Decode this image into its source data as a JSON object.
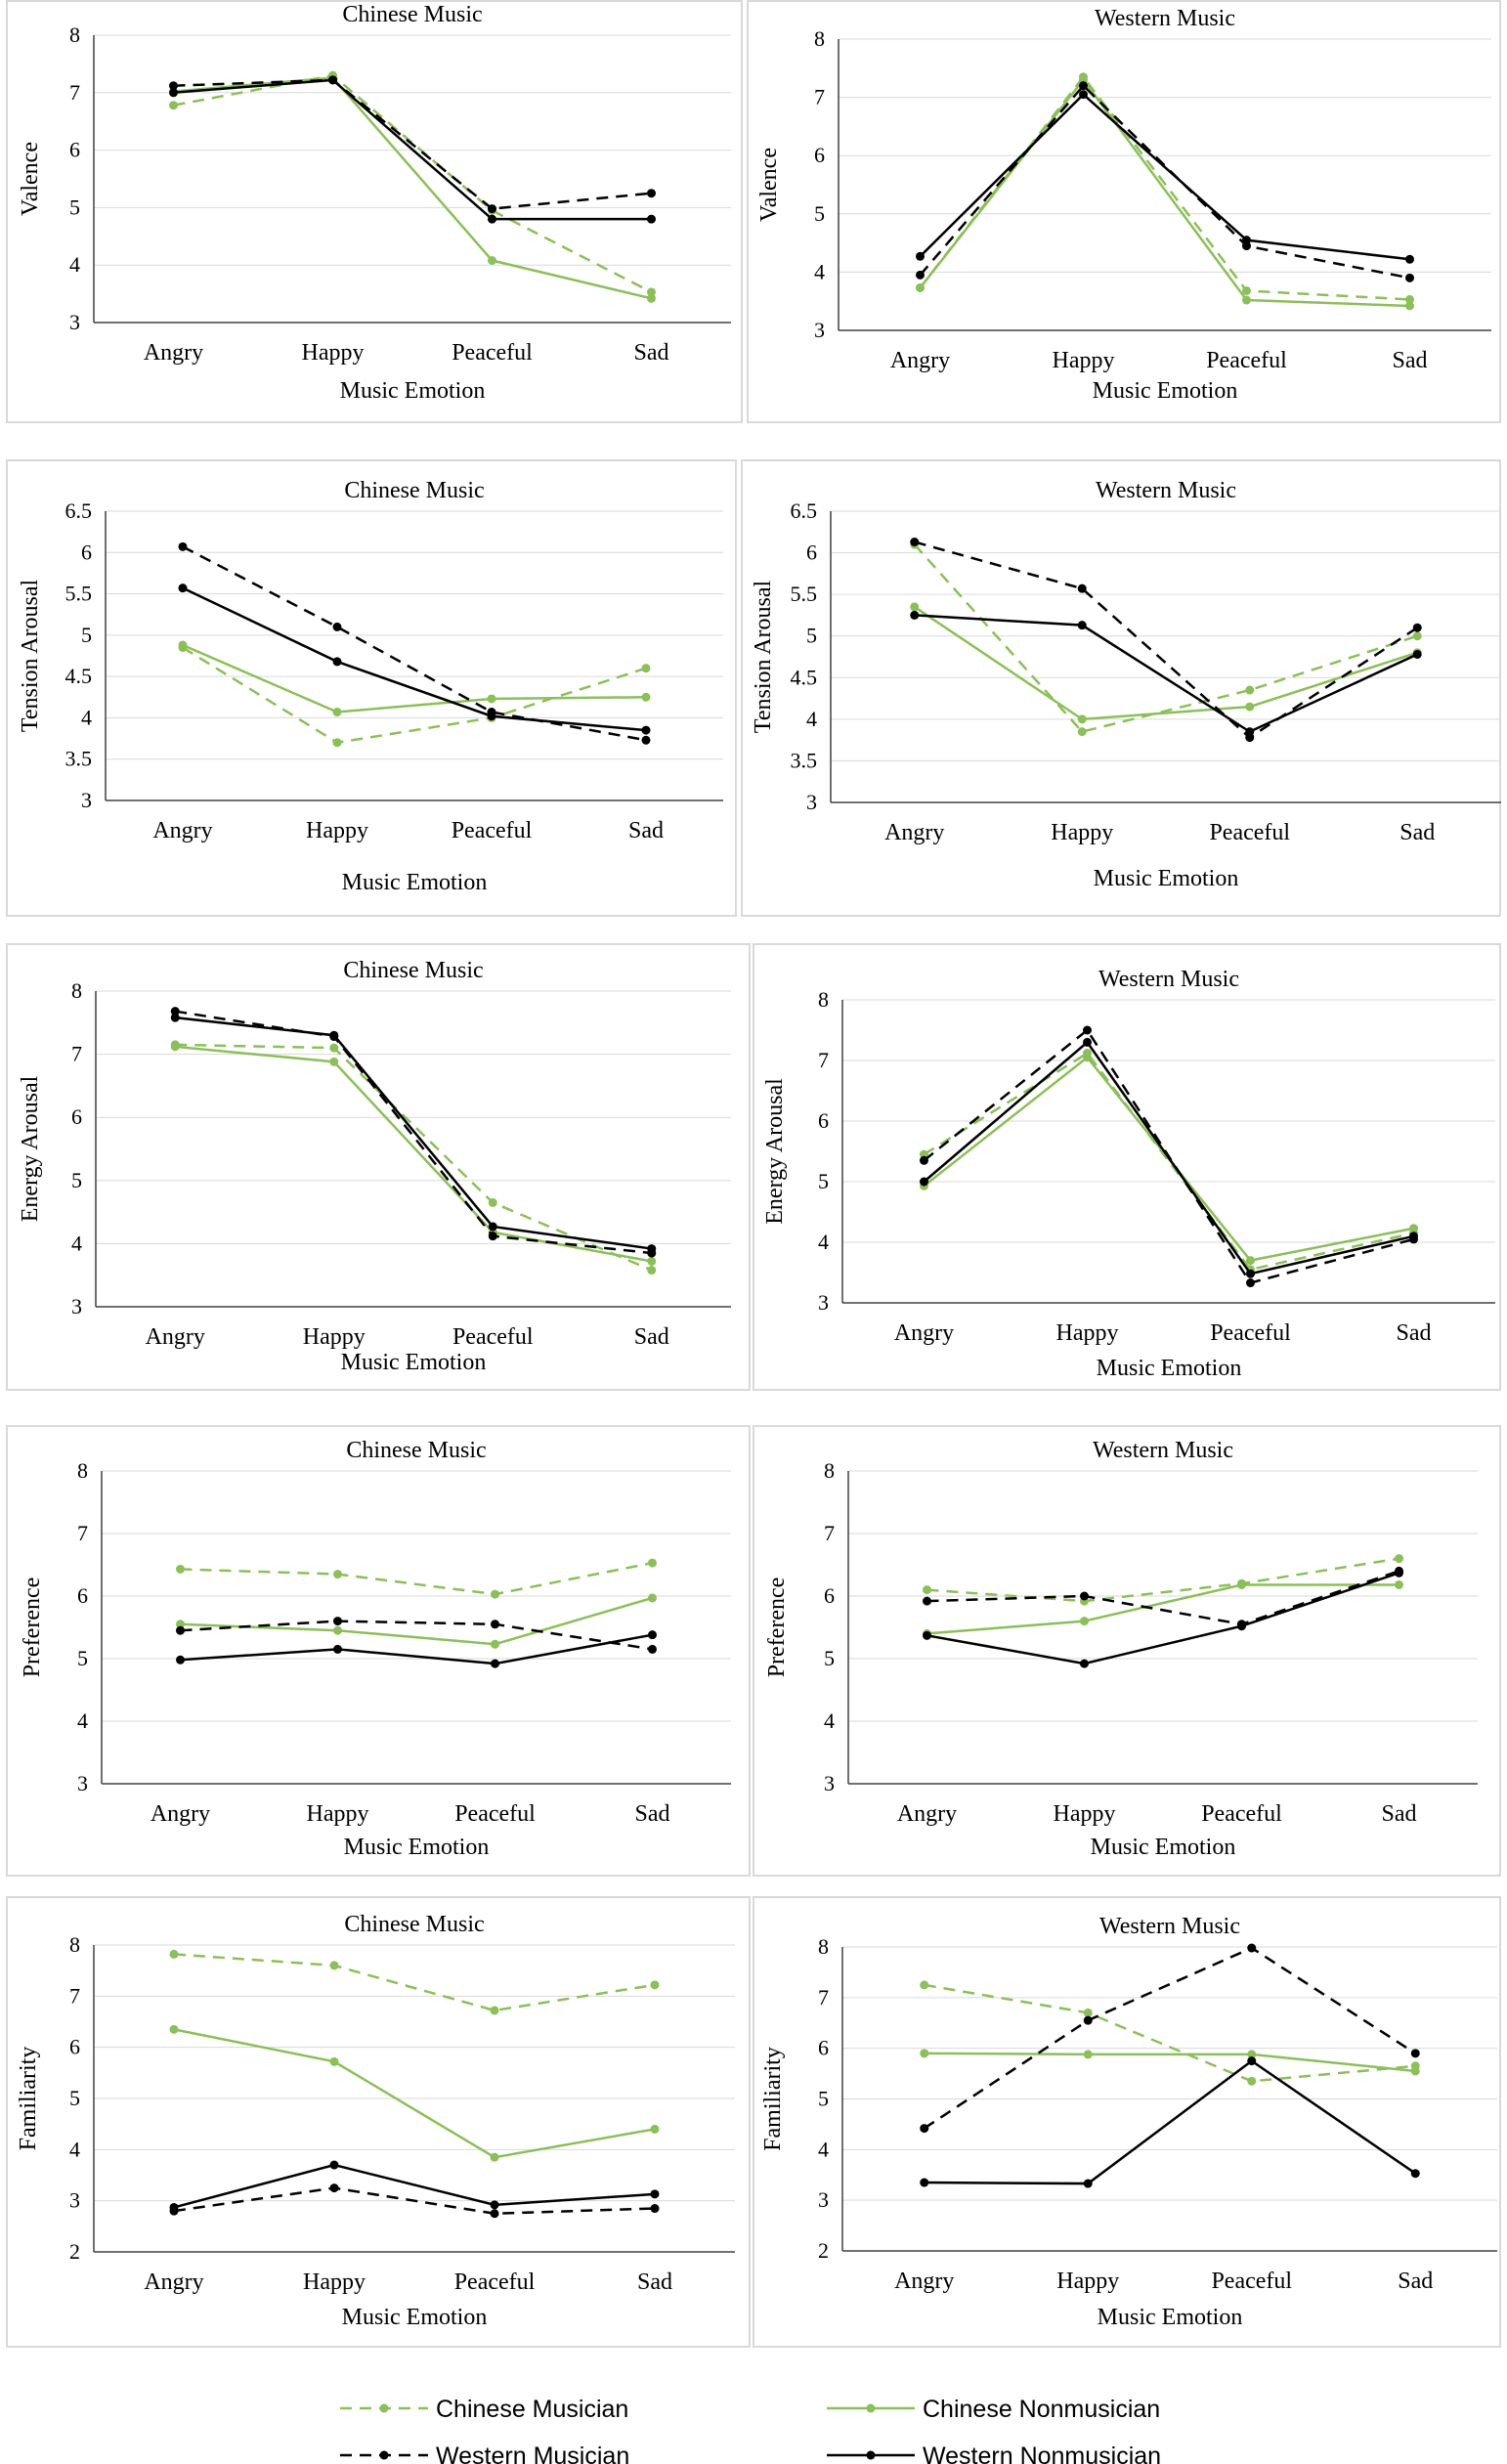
{
  "styles": {
    "chinese_color": "#8cbf5a",
    "western_color": "#000000"
  },
  "legend": [
    {
      "key": "cm",
      "label": "Chinese Musician"
    },
    {
      "key": "cn",
      "label": "Chinese Nonmusician"
    },
    {
      "key": "wm",
      "label": "Western Musician"
    },
    {
      "key": "wn",
      "label": "Western Nonmusician"
    }
  ],
  "chart_data": [
    {
      "type": "line",
      "title": "Chinese Music",
      "xlabel": "Music  Emotion",
      "ylabel": "Valence",
      "categories": [
        "Angry",
        "Happy",
        "Peaceful",
        "Sad"
      ],
      "ylim": [
        3,
        8
      ],
      "yticks": [
        3,
        4,
        5,
        6,
        7,
        8
      ],
      "series": [
        {
          "key": "cm",
          "name": "Chinese Musician",
          "values": [
            6.78,
            7.3,
            4.95,
            3.53
          ]
        },
        {
          "key": "cn",
          "name": "Chinese Nonmusician",
          "values": [
            7.02,
            7.26,
            4.08,
            3.42
          ]
        },
        {
          "key": "wm",
          "name": "Western Musician",
          "values": [
            7.12,
            7.22,
            4.98,
            5.25
          ]
        },
        {
          "key": "wn",
          "name": "Western Nonmusician",
          "values": [
            7.0,
            7.22,
            4.8,
            4.8
          ]
        }
      ]
    },
    {
      "type": "line",
      "title": "Western Music",
      "xlabel": "Music  Emotion",
      "ylabel": "Valence",
      "categories": [
        "Angry",
        "Happy",
        "Peaceful",
        "Sad"
      ],
      "ylim": [
        3,
        8
      ],
      "yticks": [
        3,
        4,
        5,
        6,
        7,
        8
      ],
      "series": [
        {
          "key": "cm",
          "name": "Chinese Musician",
          "values": [
            3.73,
            7.35,
            3.68,
            3.53
          ]
        },
        {
          "key": "cn",
          "name": "Chinese Nonmusician",
          "values": [
            3.73,
            7.3,
            3.52,
            3.42
          ]
        },
        {
          "key": "wm",
          "name": "Western Musician",
          "values": [
            3.95,
            7.2,
            4.45,
            3.9
          ]
        },
        {
          "key": "wn",
          "name": "Western Nonmusician",
          "values": [
            4.27,
            7.05,
            4.55,
            4.22
          ]
        }
      ]
    },
    {
      "type": "line",
      "title": "Chinese  Music",
      "xlabel": "Music Emotion",
      "ylabel": "Tension Arousal",
      "categories": [
        "Angry",
        "Happy",
        "Peaceful",
        "Sad"
      ],
      "ylim": [
        3,
        6.5
      ],
      "yticks": [
        3,
        3.5,
        4,
        4.5,
        5,
        5.5,
        6,
        6.5
      ],
      "series": [
        {
          "key": "cm",
          "name": "Chinese Musician",
          "values": [
            4.85,
            3.7,
            4.0,
            4.6
          ]
        },
        {
          "key": "cn",
          "name": "Chinese Nonmusician",
          "values": [
            4.88,
            4.07,
            4.23,
            4.25
          ]
        },
        {
          "key": "wm",
          "name": "Western Musician",
          "values": [
            6.07,
            5.1,
            4.07,
            3.73
          ]
        },
        {
          "key": "wn",
          "name": "Western Nonmusician",
          "values": [
            5.57,
            4.68,
            4.02,
            3.85
          ]
        }
      ]
    },
    {
      "type": "line",
      "title": "Western Music",
      "xlabel": "Music Emotion",
      "ylabel": "Tension Arousal",
      "categories": [
        "Angry",
        "Happy",
        "Peaceful",
        "Sad"
      ],
      "ylim": [
        3,
        6.5
      ],
      "yticks": [
        3,
        3.5,
        4,
        4.5,
        5,
        5.5,
        6,
        6.5
      ],
      "series": [
        {
          "key": "cm",
          "name": "Chinese Musician",
          "values": [
            6.1,
            3.85,
            4.35,
            5.0
          ]
        },
        {
          "key": "cn",
          "name": "Chinese Nonmusician",
          "values": [
            5.35,
            4.0,
            4.15,
            4.8
          ]
        },
        {
          "key": "wm",
          "name": "Western Musician",
          "values": [
            6.13,
            5.57,
            3.78,
            5.1
          ]
        },
        {
          "key": "wn",
          "name": "Western Nonmusician",
          "values": [
            5.25,
            5.13,
            3.85,
            4.78
          ]
        }
      ]
    },
    {
      "type": "line",
      "title": "Chinese Music",
      "xlabel": "Music Emotion",
      "ylabel": "Energy Arousal",
      "categories": [
        "Angry",
        "Happy",
        "Peaceful",
        "Sad"
      ],
      "ylim": [
        3,
        8
      ],
      "yticks": [
        3,
        4,
        5,
        6,
        7,
        8
      ],
      "series": [
        {
          "key": "cm",
          "name": "Chinese Musician",
          "values": [
            7.15,
            7.1,
            4.65,
            3.58
          ]
        },
        {
          "key": "cn",
          "name": "Chinese Nonmusician",
          "values": [
            7.12,
            6.88,
            4.18,
            3.72
          ]
        },
        {
          "key": "wm",
          "name": "Western Musician",
          "values": [
            7.68,
            7.28,
            4.12,
            3.85
          ]
        },
        {
          "key": "wn",
          "name": "Western Nonmusician",
          "values": [
            7.58,
            7.3,
            4.27,
            3.92
          ]
        }
      ]
    },
    {
      "type": "line",
      "title": "Western Music",
      "xlabel": "Music Emotion",
      "ylabel": "Energy Arousal",
      "categories": [
        "Angry",
        "Happy",
        "Peaceful",
        "Sad"
      ],
      "ylim": [
        3,
        8
      ],
      "yticks": [
        3,
        4,
        5,
        6,
        7,
        8
      ],
      "series": [
        {
          "key": "cm",
          "name": "Chinese Musician",
          "values": [
            5.45,
            7.12,
            3.55,
            4.15
          ]
        },
        {
          "key": "cn",
          "name": "Chinese Nonmusician",
          "values": [
            4.93,
            7.05,
            3.7,
            4.23
          ]
        },
        {
          "key": "wm",
          "name": "Western Musician",
          "values": [
            5.35,
            7.5,
            3.33,
            4.05
          ]
        },
        {
          "key": "wn",
          "name": "Western Nonmusician",
          "values": [
            5.0,
            7.3,
            3.48,
            4.1
          ]
        }
      ]
    },
    {
      "type": "line",
      "title": "Chinese Music",
      "xlabel": "Music Emotion",
      "ylabel": "Preference",
      "categories": [
        "Angry",
        "Happy",
        "Peaceful",
        "Sad"
      ],
      "ylim": [
        3,
        8
      ],
      "yticks": [
        3,
        4,
        5,
        6,
        7,
        8
      ],
      "series": [
        {
          "key": "cm",
          "name": "Chinese Musician",
          "values": [
            6.43,
            6.35,
            6.03,
            6.53
          ]
        },
        {
          "key": "cn",
          "name": "Chinese Nonmusician",
          "values": [
            5.55,
            5.45,
            5.23,
            5.97
          ]
        },
        {
          "key": "wm",
          "name": "Western Musician",
          "values": [
            5.45,
            5.6,
            5.55,
            5.15
          ]
        },
        {
          "key": "wn",
          "name": "Western Nonmusician",
          "values": [
            4.98,
            5.15,
            4.92,
            5.38
          ]
        }
      ]
    },
    {
      "type": "line",
      "title": "Western Music",
      "xlabel": "Music Emotion",
      "ylabel": "Preference",
      "categories": [
        "Angry",
        "Happy",
        "Peaceful",
        "Sad"
      ],
      "ylim": [
        3,
        8
      ],
      "yticks": [
        3,
        4,
        5,
        6,
        7,
        8
      ],
      "series": [
        {
          "key": "cm",
          "name": "Chinese Musician",
          "values": [
            6.1,
            5.92,
            6.2,
            6.6
          ]
        },
        {
          "key": "cn",
          "name": "Chinese Nonmusician",
          "values": [
            5.4,
            5.6,
            6.18,
            6.18
          ]
        },
        {
          "key": "wm",
          "name": "Western Musician",
          "values": [
            5.92,
            6.0,
            5.55,
            6.4
          ]
        },
        {
          "key": "wn",
          "name": "Western Nonmusician",
          "values": [
            5.37,
            4.92,
            5.52,
            6.37
          ]
        }
      ]
    },
    {
      "type": "line",
      "title": "Chinese Music",
      "xlabel": "Music Emotion",
      "ylabel": "Familiarity",
      "categories": [
        "Angry",
        "Happy",
        "Peaceful",
        "Sad"
      ],
      "ylim": [
        2,
        8
      ],
      "yticks": [
        2,
        3,
        4,
        5,
        6,
        7,
        8
      ],
      "series": [
        {
          "key": "cm",
          "name": "Chinese Musician",
          "values": [
            7.82,
            7.6,
            6.72,
            7.22
          ]
        },
        {
          "key": "cn",
          "name": "Chinese Nonmusician",
          "values": [
            6.35,
            5.72,
            3.85,
            4.4
          ]
        },
        {
          "key": "wm",
          "name": "Western Musician",
          "values": [
            2.8,
            3.25,
            2.75,
            2.85
          ]
        },
        {
          "key": "wn",
          "name": "Western Nonmusician",
          "values": [
            2.87,
            3.7,
            2.92,
            3.13
          ]
        }
      ]
    },
    {
      "type": "line",
      "title": "Western Music",
      "xlabel": "Music Emotion",
      "ylabel": "Familiarity",
      "categories": [
        "Angry",
        "Happy",
        "Peaceful",
        "Sad"
      ],
      "ylim": [
        2,
        8
      ],
      "yticks": [
        2,
        3,
        4,
        5,
        6,
        7,
        8
      ],
      "series": [
        {
          "key": "cm",
          "name": "Chinese Musician",
          "values": [
            7.25,
            6.7,
            5.35,
            5.65
          ]
        },
        {
          "key": "cn",
          "name": "Chinese Nonmusician",
          "values": [
            5.9,
            5.88,
            5.88,
            5.55
          ]
        },
        {
          "key": "wm",
          "name": "Western Musician",
          "values": [
            4.42,
            6.55,
            7.98,
            5.9
          ]
        },
        {
          "key": "wn",
          "name": "Western Nonmusician",
          "values": [
            3.35,
            3.33,
            5.75,
            3.53
          ]
        }
      ]
    }
  ]
}
